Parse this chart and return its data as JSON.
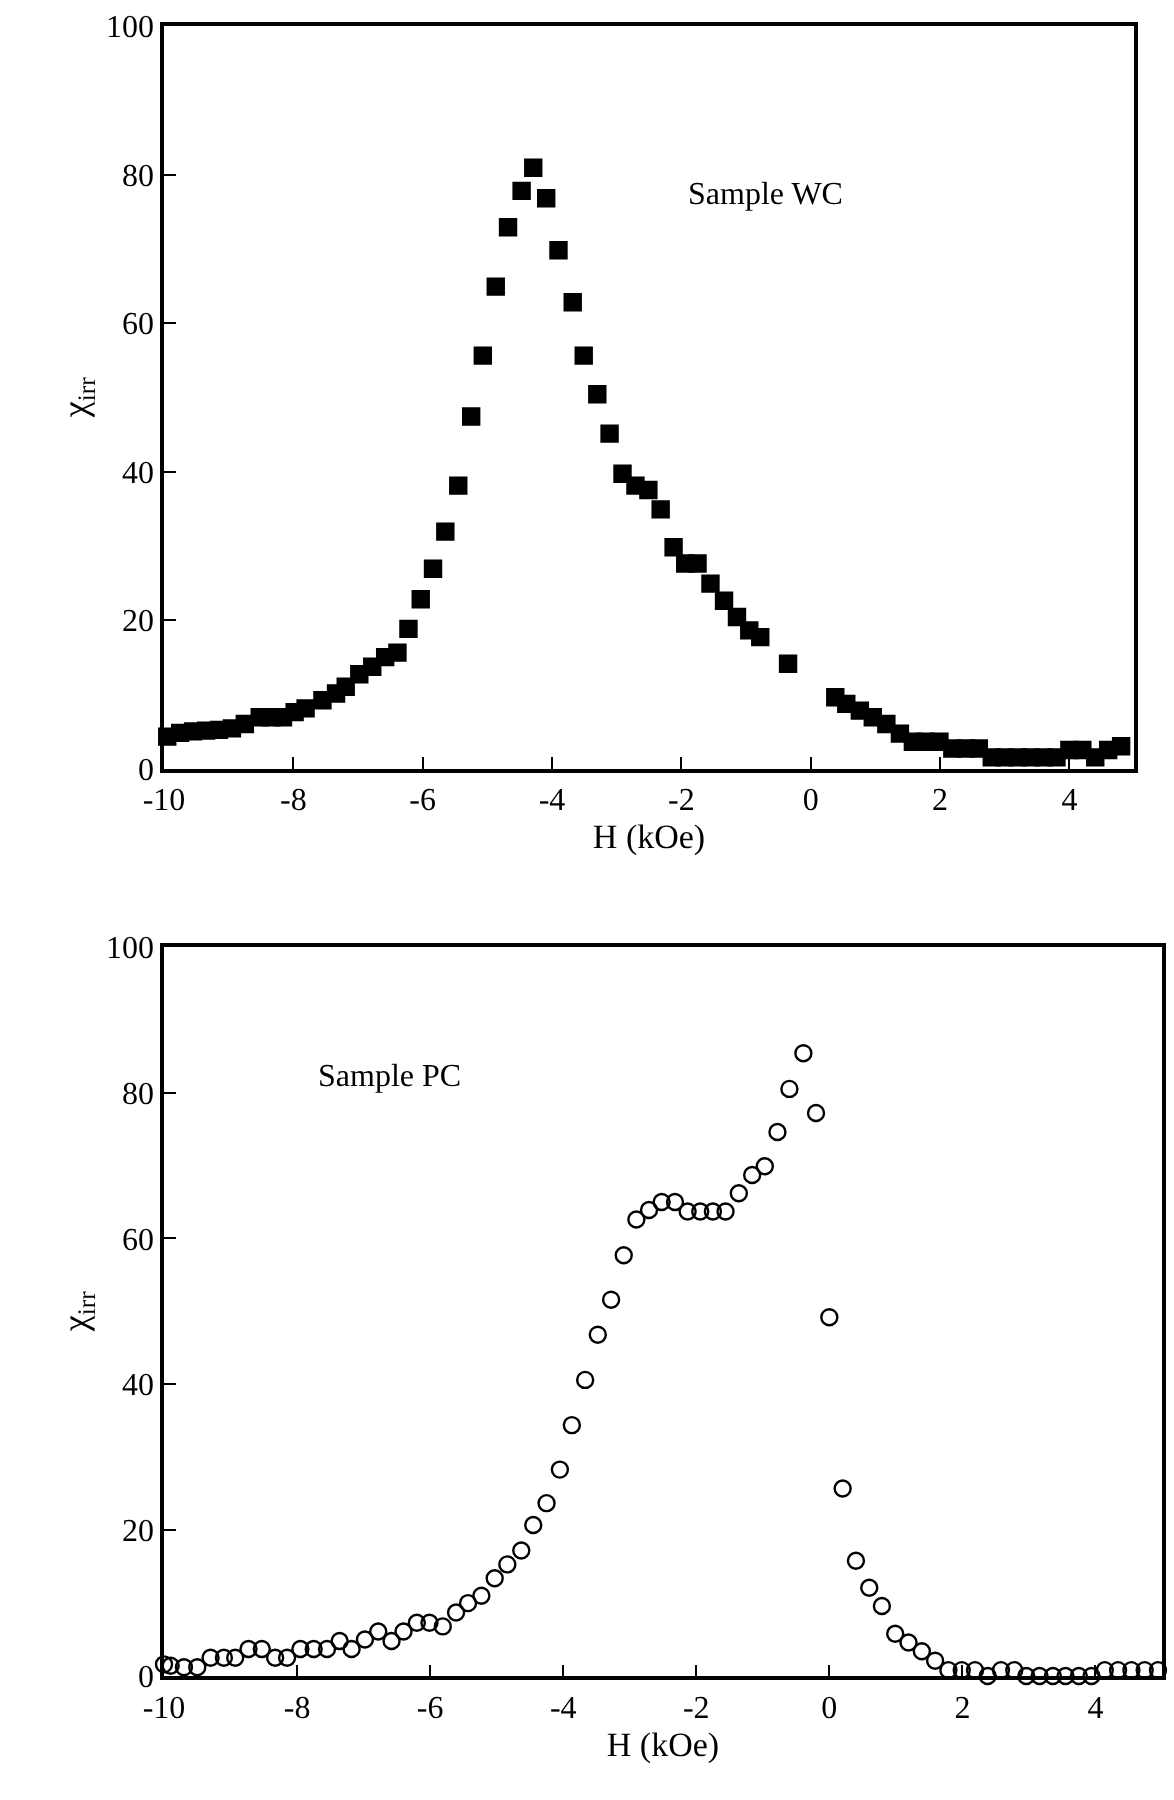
{
  "chart_data": [
    {
      "type": "scatter",
      "xlabel": "H (kOe)",
      "ylabel": "χ$_{irr}$",
      "annotations": [
        "Sample WC"
      ],
      "marker": "square",
      "xlim": [
        -10,
        5
      ],
      "ylim": [
        0,
        100
      ],
      "xticks": [
        -10,
        -8,
        -6,
        -4,
        -2,
        0,
        2,
        4
      ],
      "yticks": [
        0,
        20,
        40,
        60,
        80,
        100
      ],
      "series": [
        {
          "color": "#000000",
          "x": [
            -9.95,
            -9.75,
            -9.55,
            -9.35,
            -9.15,
            -8.95,
            -8.75,
            -8.52,
            -8.34,
            -8.16,
            -7.98,
            -7.81,
            -7.55,
            -7.34,
            -7.19,
            -6.98,
            -6.78,
            -6.58,
            -6.39,
            -6.22,
            -6.03,
            -5.84,
            -5.65,
            -5.45,
            -5.25,
            -5.07,
            -4.87,
            -4.68,
            -4.47,
            -4.29,
            -4.09,
            -3.9,
            -3.68,
            -3.51,
            -3.3,
            -3.11,
            -2.91,
            -2.71,
            -2.51,
            -2.32,
            -2.12,
            -1.94,
            -1.75,
            -1.55,
            -1.34,
            -1.14,
            -0.95,
            -0.78,
            -0.35,
            0.38,
            0.55,
            0.76,
            0.96,
            1.17,
            1.38,
            1.58,
            1.78,
            1.99,
            2.19,
            2.4,
            2.6,
            2.8,
            3.0,
            3.2,
            3.4,
            3.6,
            3.8,
            4.0,
            4.2,
            4.4,
            4.6,
            4.8
          ],
          "values": [
            4.3,
            4.8,
            5.0,
            5.1,
            5.2,
            5.4,
            6.0,
            6.9,
            6.9,
            6.9,
            7.6,
            8.1,
            9.2,
            10.1,
            11.0,
            12.7,
            13.7,
            15.0,
            15.6,
            18.8,
            22.8,
            26.9,
            31.9,
            38.1,
            47.4,
            55.6,
            64.9,
            72.9,
            77.8,
            80.9,
            76.8,
            69.8,
            62.8,
            55.6,
            50.4,
            45.1,
            39.7,
            38.1,
            37.5,
            34.9,
            29.8,
            27.6,
            27.6,
            24.9,
            22.6,
            20.4,
            18.6,
            17.7,
            14.1,
            9.6,
            8.7,
            7.8,
            6.9,
            6.0,
            4.7,
            3.6,
            3.6,
            3.6,
            2.7,
            2.7,
            2.7,
            1.5,
            1.5,
            1.5,
            1.5,
            1.5,
            1.5,
            2.5,
            2.5,
            1.5,
            2.5,
            3.0
          ]
        }
      ]
    },
    {
      "type": "scatter",
      "xlabel": "H (kOe)",
      "ylabel": "χ$_{irr}$",
      "annotations": [
        "Sample PC"
      ],
      "marker": "circle",
      "xlim": [
        -10,
        5
      ],
      "ylim": [
        0,
        100
      ],
      "xticks": [
        -10,
        -8,
        -6,
        -4,
        -2,
        0,
        2,
        4
      ],
      "yticks": [
        0,
        20,
        40,
        60,
        80,
        100
      ],
      "series": [
        {
          "color": "#000000",
          "x": [
            -10.0,
            -9.9,
            -9.7,
            -9.5,
            -9.3,
            -9.1,
            -8.93,
            -8.73,
            -8.53,
            -8.33,
            -8.15,
            -7.95,
            -7.75,
            -7.55,
            -7.36,
            -7.18,
            -6.98,
            -6.78,
            -6.58,
            -6.4,
            -6.2,
            -6.01,
            -5.81,
            -5.61,
            -5.43,
            -5.23,
            -5.03,
            -4.84,
            -4.63,
            -4.45,
            -4.25,
            -4.05,
            -3.87,
            -3.67,
            -3.48,
            -3.28,
            -3.09,
            -2.9,
            -2.71,
            -2.52,
            -2.32,
            -2.13,
            -1.94,
            -1.75,
            -1.56,
            -1.36,
            -1.16,
            -0.97,
            -0.78,
            -0.6,
            -0.39,
            -0.2,
            0.0,
            0.2,
            0.4,
            0.6,
            0.79,
            0.99,
            1.19,
            1.39,
            1.59,
            1.79,
            1.99,
            2.19,
            2.38,
            2.58,
            2.78,
            2.96,
            3.16,
            3.36,
            3.55,
            3.75,
            3.94,
            4.14,
            4.34,
            4.54,
            4.74,
            4.94
          ],
          "values": [
            1.6,
            1.4,
            1.2,
            1.2,
            2.5,
            2.5,
            2.5,
            3.7,
            3.7,
            2.5,
            2.5,
            3.7,
            3.7,
            3.7,
            4.8,
            3.7,
            5.0,
            6.1,
            4.8,
            6.1,
            7.3,
            7.3,
            6.8,
            8.7,
            10.0,
            11.0,
            13.4,
            15.3,
            17.2,
            20.7,
            23.7,
            28.3,
            34.4,
            40.6,
            46.8,
            51.6,
            57.7,
            62.6,
            63.9,
            65.0,
            65.0,
            63.7,
            63.7,
            63.7,
            63.7,
            66.2,
            68.7,
            69.9,
            74.6,
            80.5,
            85.4,
            77.2,
            49.2,
            25.7,
            15.8,
            12.1,
            9.6,
            5.8,
            4.6,
            3.4,
            2.1,
            0.8,
            0.8,
            0.8,
            0,
            0.8,
            0.8,
            0,
            0,
            0,
            0,
            0,
            0,
            0.8,
            0.8,
            0.8,
            0.8,
            0.8
          ]
        }
      ]
    }
  ]
}
